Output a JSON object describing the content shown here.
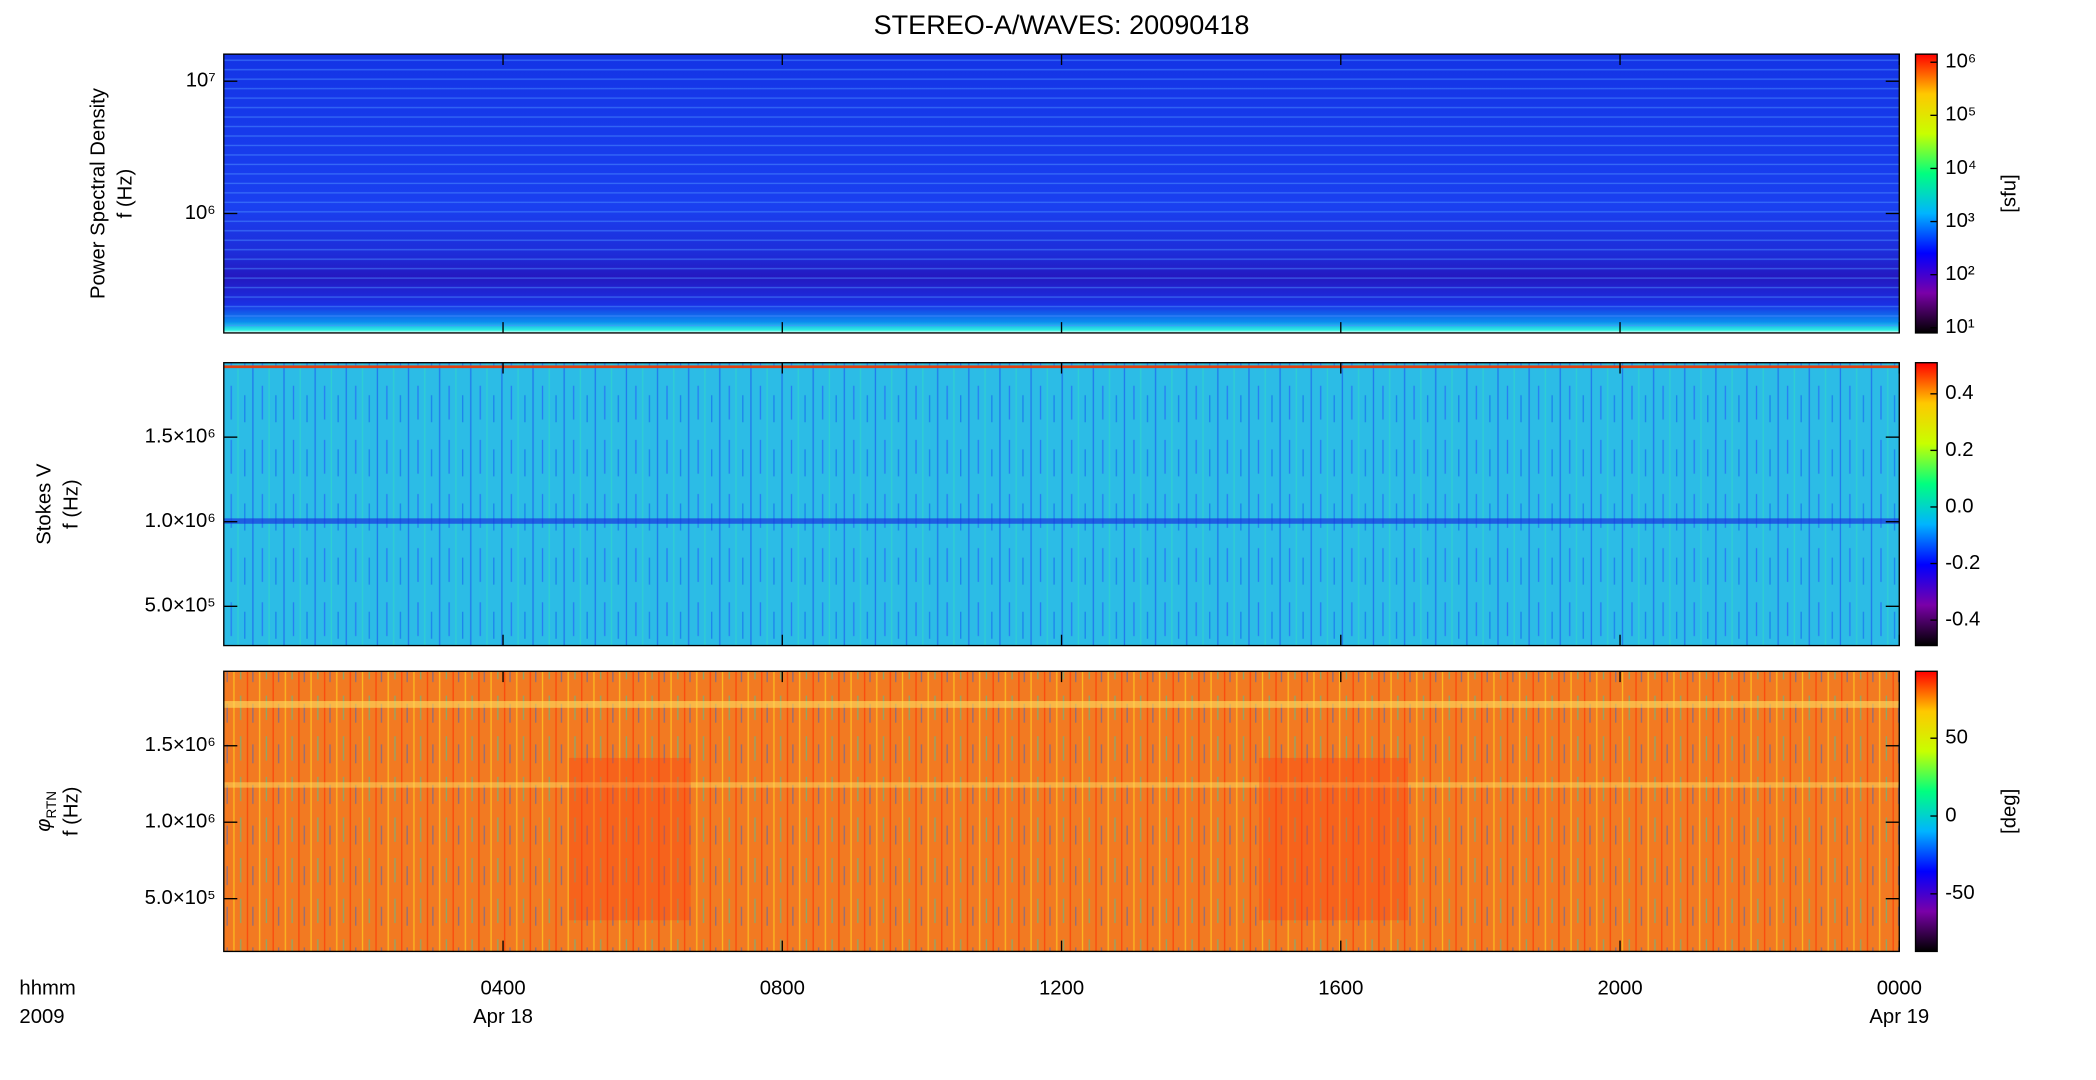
{
  "chart_data": [
    {
      "type": "spectrogram",
      "title": "STEREO-A/WAVES: 20090418",
      "ylabel": [
        "Power Spectral Density",
        "f (Hz)"
      ],
      "ylog": true,
      "ylim": [
        125000,
        16025000
      ],
      "yticks": [
        {
          "value": 1000000,
          "label": "10⁶"
        },
        {
          "value": 10000000,
          "label": "10⁷"
        }
      ],
      "colorbar": {
        "label": "[sfu]",
        "log": true,
        "clim": [
          8,
          1420000
        ],
        "ticks": [
          {
            "value": 10,
            "label": "10¹"
          },
          {
            "value": 100,
            "label": "10²"
          },
          {
            "value": 1000,
            "label": "10³"
          },
          {
            "value": 10000,
            "label": "10⁴"
          },
          {
            "value": 100000,
            "label": "10⁵"
          },
          {
            "value": 1000000,
            "label": "10⁶"
          }
        ],
        "colormap": [
          "#000000",
          "#7a00a8",
          "#0000ff",
          "#00b4ff",
          "#00ff80",
          "#c8ff00",
          "#ffc800",
          "#ff0000"
        ]
      }
    },
    {
      "type": "spectrogram",
      "ylabel": [
        "Stokes V",
        "f (Hz)"
      ],
      "ylog": false,
      "ylim": [
        268000,
        1940000
      ],
      "yticks": [
        {
          "value": 500000,
          "label": "5.0×10⁵"
        },
        {
          "value": 1000000,
          "label": "1.0×10⁶"
        },
        {
          "value": 1500000,
          "label": "1.5×10⁶"
        }
      ],
      "colorbar": {
        "log": false,
        "clim": [
          -0.49,
          0.51
        ],
        "ticks": [
          -0.4,
          -0.2,
          {
            "value": 0,
            "label": "0.0"
          },
          0.2,
          0.4
        ],
        "colormap": [
          "#000000",
          "#7a00a8",
          "#0000ff",
          "#00b4ff",
          "#00ff80",
          "#c8ff00",
          "#ffc800",
          "#ff0000"
        ]
      }
    },
    {
      "type": "spectrogram",
      "ylabel_symbol": "φ",
      "ylabel_subscript": "RTN",
      "ylabel": [
        "f (Hz)"
      ],
      "ylog": false,
      "ylim": [
        155000,
        1987000
      ],
      "yticks": [
        {
          "value": 500000,
          "label": "5.0×10⁵"
        },
        {
          "value": 1000000,
          "label": "1.0×10⁶"
        },
        {
          "value": 1500000,
          "label": "1.5×10⁶"
        }
      ],
      "colorbar": {
        "label": "[deg]",
        "log": false,
        "clim": [
          -87,
          93
        ],
        "ticks": [
          -50,
          0,
          50
        ],
        "colormap": [
          "#000000",
          "#7a00a8",
          "#0000ff",
          "#00b4ff",
          "#00ff80",
          "#c8ff00",
          "#ffc800",
          "#ff0000"
        ]
      },
      "xlabel": "hhmm",
      "xlabel_year": "2009",
      "xlim": [
        0,
        24
      ],
      "xticks": [
        {
          "value": 4,
          "label": "0400"
        },
        {
          "value": 8,
          "label": "0800"
        },
        {
          "value": 12,
          "label": "1200"
        },
        {
          "value": 16,
          "label": "1600"
        },
        {
          "value": 20,
          "label": "2000"
        },
        {
          "value": 24,
          "label": "0000"
        }
      ],
      "date_labels": [
        {
          "x": 4,
          "label": "Apr 18"
        },
        {
          "x": 24,
          "label": "Apr 19"
        }
      ]
    }
  ]
}
